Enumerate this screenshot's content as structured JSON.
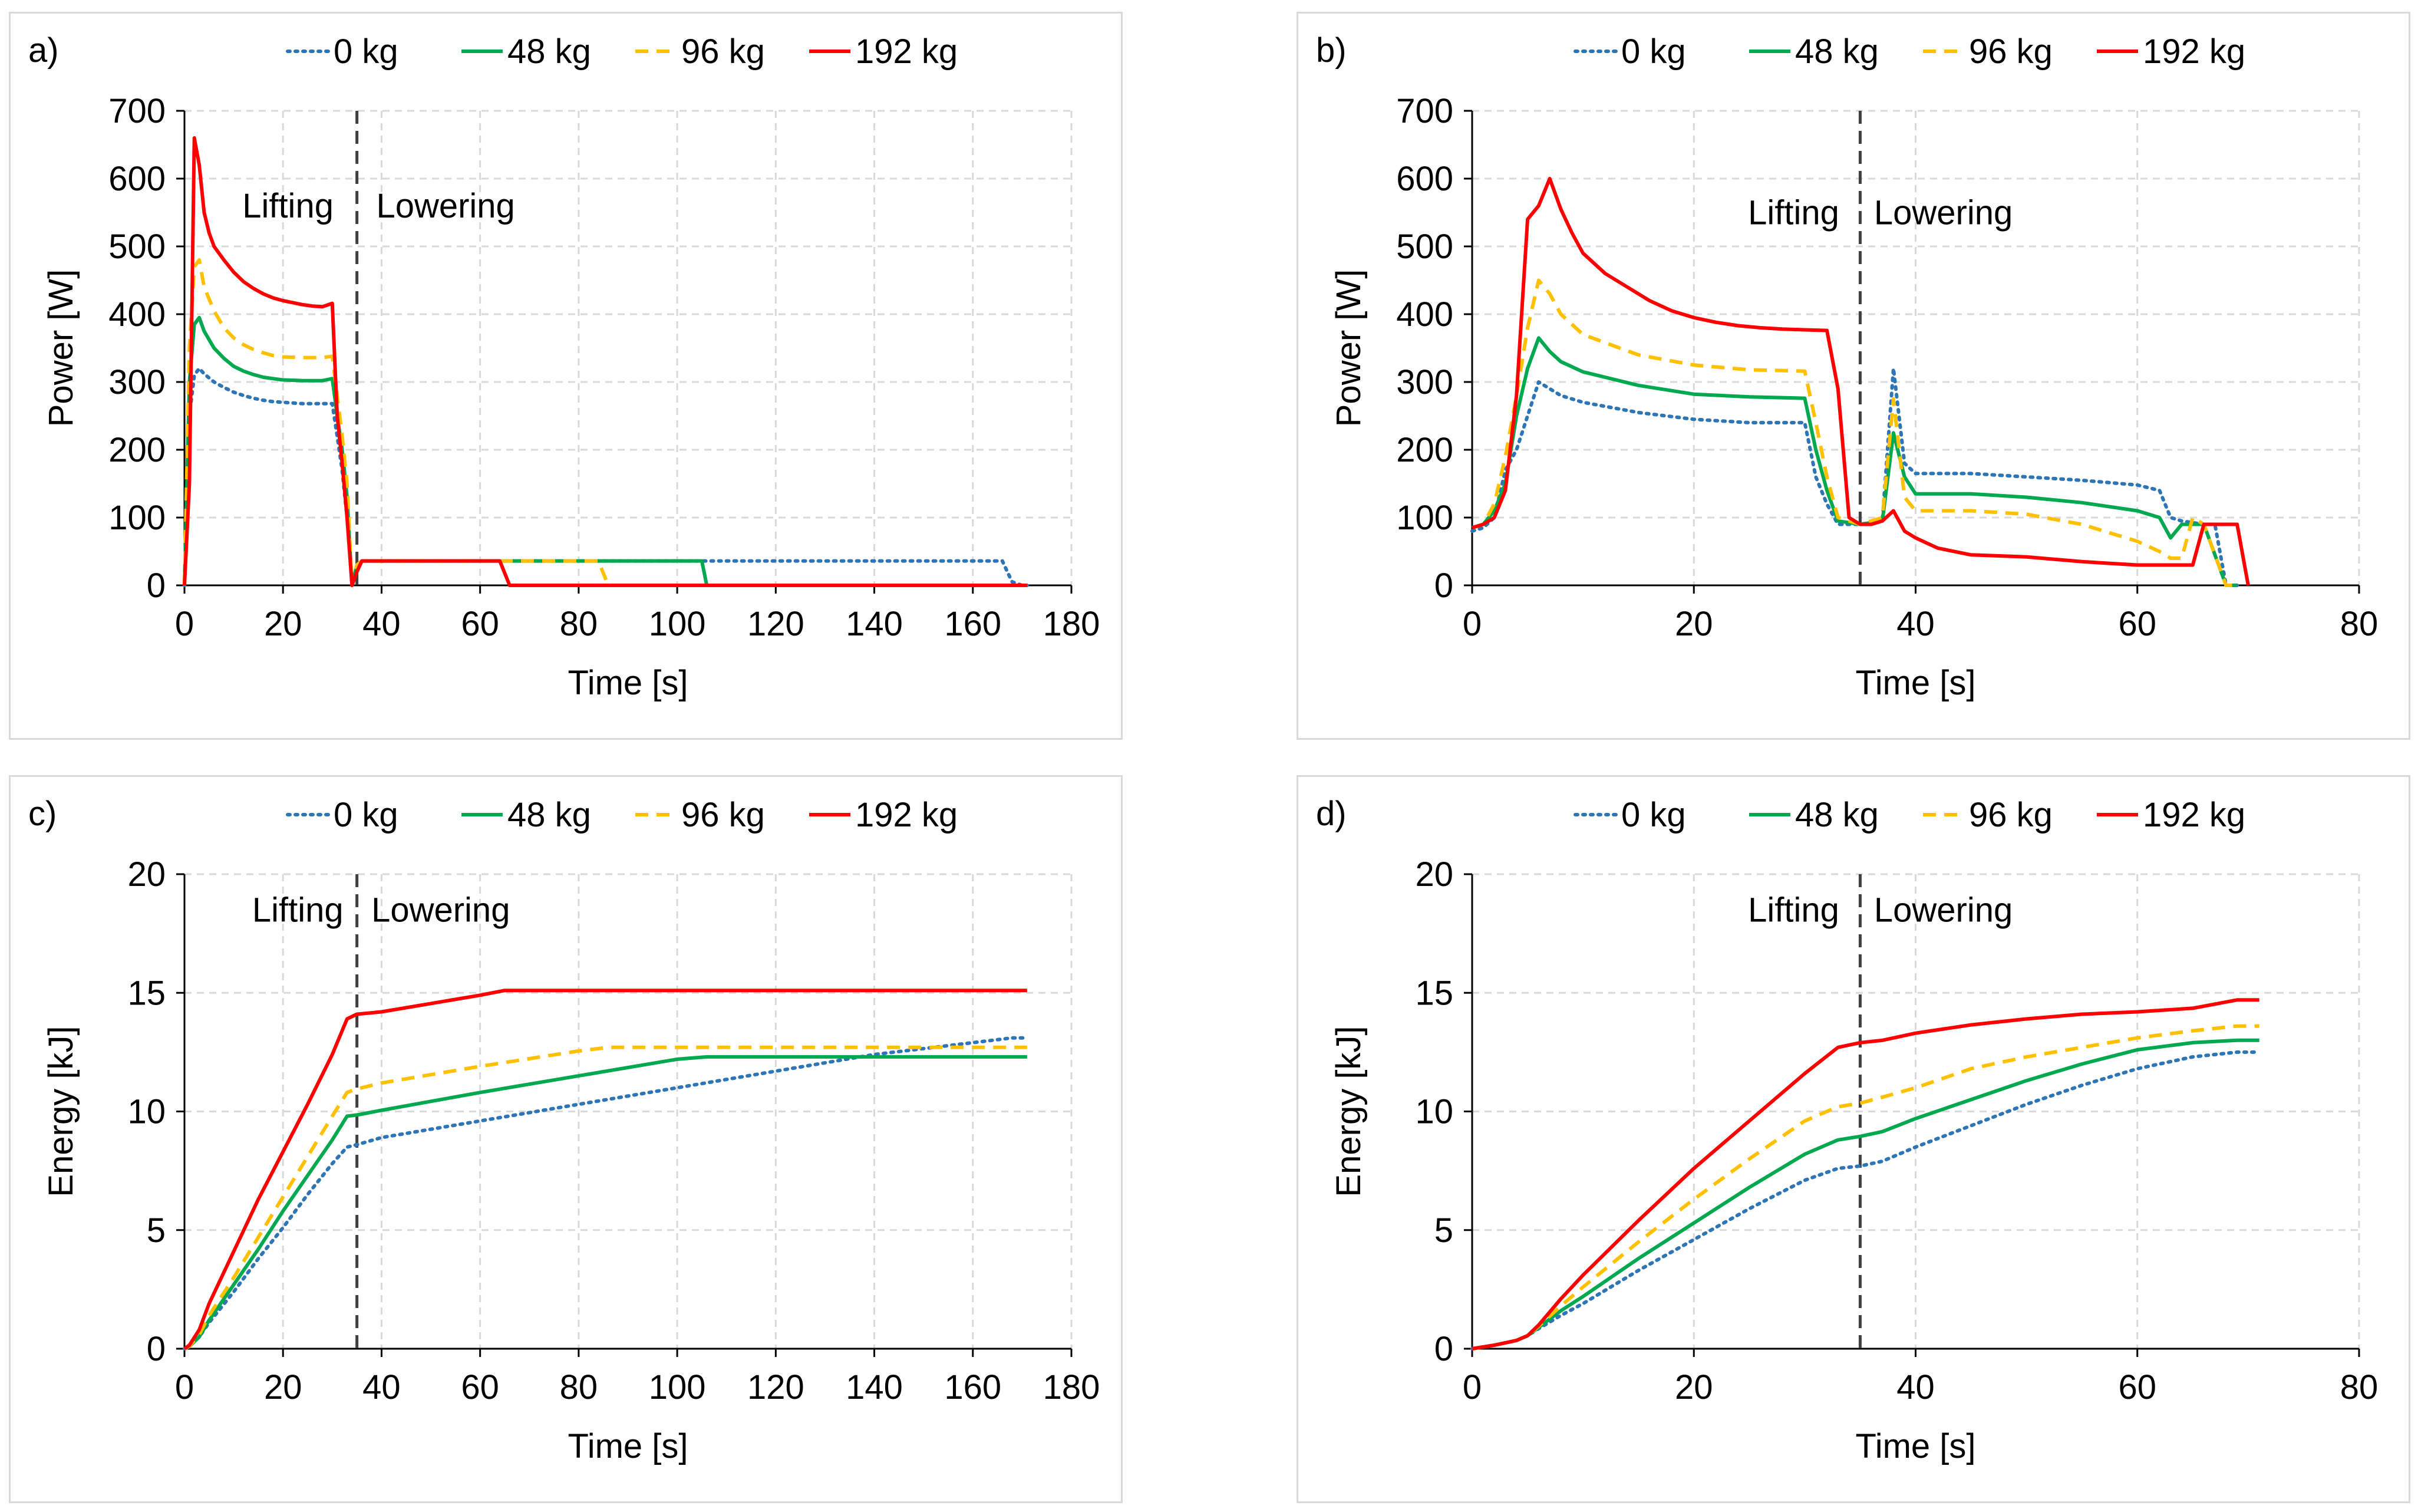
{
  "chart_data": [
    {
      "id": "a",
      "panel_label": "a)",
      "type": "line",
      "xlabel": "Time [s]",
      "ylabel": "Power  [W]",
      "xlim": [
        0,
        180
      ],
      "ylim": [
        0,
        700
      ],
      "xticks": [
        0,
        20,
        40,
        60,
        80,
        100,
        120,
        140,
        160,
        180
      ],
      "yticks": [
        0,
        100,
        200,
        300,
        400,
        500,
        600,
        700
      ],
      "grid": true,
      "legend_position": "top",
      "divider_x": 35,
      "annotations": [
        {
          "text": "Lifting",
          "x": 21,
          "y": 560
        },
        {
          "text": "Lowering",
          "x": 53,
          "y": 560
        }
      ],
      "series": [
        {
          "name": "0 kg",
          "color": "#2e75b6",
          "style": "dotted",
          "x": [
            0,
            1,
            2,
            3,
            4,
            6,
            8,
            10,
            12,
            14,
            16,
            18,
            20,
            24,
            28,
            30,
            31,
            32,
            33,
            34,
            35,
            36,
            40,
            60,
            80,
            100,
            120,
            140,
            160,
            166,
            167,
            168,
            170,
            171
          ],
          "y": [
            0,
            250,
            310,
            320,
            312,
            300,
            292,
            285,
            280,
            276,
            273,
            271,
            270,
            268,
            268,
            268,
            220,
            170,
            100,
            0,
            20,
            36,
            36,
            36,
            36,
            36,
            36,
            36,
            36,
            36,
            20,
            5,
            0,
            0
          ]
        },
        {
          "name": "48 kg",
          "color": "#00a84f",
          "style": "solid",
          "x": [
            0,
            1,
            2,
            3,
            4,
            6,
            8,
            10,
            12,
            14,
            16,
            18,
            20,
            24,
            28,
            30,
            31,
            32,
            33,
            34,
            35,
            36,
            40,
            60,
            80,
            100,
            105,
            106,
            110,
            171
          ],
          "y": [
            0,
            300,
            385,
            395,
            375,
            350,
            335,
            323,
            316,
            311,
            307,
            305,
            303,
            302,
            302,
            305,
            250,
            200,
            130,
            0,
            30,
            36,
            36,
            36,
            36,
            36,
            36,
            0,
            0,
            0
          ]
        },
        {
          "name": "96 kg",
          "color": "#ffc000",
          "style": "dashed",
          "x": [
            0,
            1,
            2,
            3,
            4,
            6,
            8,
            10,
            12,
            14,
            16,
            18,
            20,
            24,
            28,
            30,
            31,
            32,
            33,
            34,
            35,
            36,
            40,
            60,
            80,
            84,
            86,
            90,
            171
          ],
          "y": [
            0,
            350,
            470,
            480,
            440,
            405,
            380,
            365,
            355,
            348,
            343,
            339,
            337,
            336,
            336,
            338,
            280,
            220,
            150,
            0,
            30,
            36,
            36,
            36,
            36,
            36,
            0,
            0,
            0
          ]
        },
        {
          "name": "192 kg",
          "color": "#ff0000",
          "style": "solid",
          "x": [
            0,
            1,
            2,
            3,
            4,
            5,
            6,
            8,
            10,
            12,
            14,
            16,
            18,
            20,
            22,
            24,
            26,
            28,
            30,
            31,
            32,
            33,
            34,
            35,
            36,
            40,
            60,
            64,
            66,
            70,
            171
          ],
          "y": [
            0,
            150,
            660,
            620,
            550,
            520,
            500,
            480,
            462,
            448,
            438,
            430,
            424,
            420,
            417,
            414,
            412,
            411,
            416,
            250,
            180,
            100,
            0,
            20,
            36,
            36,
            36,
            36,
            0,
            0,
            0
          ]
        }
      ]
    },
    {
      "id": "b",
      "panel_label": "b)",
      "type": "line",
      "xlabel": "Time [s]",
      "ylabel": "Power  [W]",
      "xlim": [
        0,
        80
      ],
      "ylim": [
        0,
        700
      ],
      "xticks": [
        0,
        20,
        40,
        60,
        80
      ],
      "yticks": [
        0,
        100,
        200,
        300,
        400,
        500,
        600,
        700
      ],
      "grid": true,
      "legend_position": "top",
      "divider_x": 35,
      "annotations": [
        {
          "text": "Lifting",
          "x": 29,
          "y": 550
        },
        {
          "text": "Lowering",
          "x": 42.5,
          "y": 550
        }
      ],
      "series": [
        {
          "name": "0 kg",
          "color": "#2e75b6",
          "style": "dotted",
          "x": [
            0,
            1,
            2,
            3,
            4,
            5,
            6,
            7,
            8,
            10,
            15,
            20,
            25,
            30,
            31,
            32,
            33,
            35,
            37,
            38,
            39,
            40,
            45,
            50,
            55,
            60,
            62,
            63,
            64,
            66,
            67,
            68,
            69
          ],
          "y": [
            80,
            85,
            100,
            170,
            200,
            250,
            300,
            290,
            280,
            270,
            255,
            245,
            240,
            240,
            160,
            120,
            90,
            90,
            95,
            320,
            180,
            165,
            165,
            160,
            155,
            148,
            140,
            100,
            95,
            90,
            90,
            0,
            0
          ]
        },
        {
          "name": "48 kg",
          "color": "#00a84f",
          "style": "solid",
          "x": [
            0,
            1,
            2,
            3,
            4,
            5,
            6,
            7,
            8,
            10,
            15,
            20,
            25,
            30,
            31,
            32,
            33,
            35,
            37,
            38,
            39,
            40,
            45,
            50,
            55,
            60,
            62,
            63,
            64,
            66,
            68,
            69
          ],
          "y": [
            85,
            90,
            110,
            150,
            250,
            320,
            365,
            345,
            330,
            315,
            295,
            282,
            278,
            276,
            200,
            140,
            95,
            90,
            95,
            225,
            160,
            135,
            135,
            130,
            122,
            110,
            100,
            70,
            90,
            90,
            0,
            0
          ]
        },
        {
          "name": "96 kg",
          "color": "#ffc000",
          "style": "dashed",
          "x": [
            0,
            1,
            2,
            3,
            4,
            5,
            6,
            7,
            8,
            10,
            15,
            20,
            25,
            30,
            31,
            32,
            33,
            35,
            37,
            38,
            39,
            40,
            45,
            50,
            55,
            60,
            62,
            63,
            64,
            65,
            66,
            68,
            69
          ],
          "y": [
            85,
            90,
            120,
            190,
            280,
            380,
            450,
            430,
            400,
            370,
            340,
            325,
            318,
            316,
            240,
            160,
            100,
            90,
            100,
            275,
            130,
            110,
            110,
            105,
            90,
            65,
            50,
            40,
            40,
            100,
            90,
            0,
            0
          ]
        },
        {
          "name": "192 kg",
          "color": "#ff0000",
          "style": "solid",
          "x": [
            0,
            1,
            2,
            3,
            4,
            5,
            6,
            7,
            8,
            9,
            10,
            12,
            14,
            16,
            18,
            20,
            22,
            24,
            26,
            28,
            30,
            32,
            33,
            34,
            35,
            36,
            37,
            38,
            39,
            40,
            42,
            45,
            50,
            55,
            58,
            60,
            62,
            64,
            65,
            66,
            68,
            69,
            70
          ],
          "y": [
            85,
            90,
            100,
            140,
            280,
            540,
            560,
            600,
            555,
            520,
            490,
            460,
            440,
            420,
            405,
            395,
            388,
            383,
            380,
            378,
            377,
            376,
            290,
            100,
            90,
            90,
            95,
            110,
            80,
            70,
            55,
            45,
            42,
            35,
            32,
            30,
            30,
            30,
            30,
            90,
            90,
            90,
            0
          ]
        }
      ]
    },
    {
      "id": "c",
      "panel_label": "c)",
      "type": "line",
      "xlabel": "Time [s]",
      "ylabel": "Energy  [kJ]",
      "xlim": [
        0,
        180
      ],
      "ylim": [
        0,
        20
      ],
      "xticks": [
        0,
        20,
        40,
        60,
        80,
        100,
        120,
        140,
        160,
        180
      ],
      "yticks": [
        0,
        5,
        10,
        15,
        20
      ],
      "grid": true,
      "legend_position": "top",
      "divider_x": 35,
      "annotations": [
        {
          "text": "Lifting",
          "x": 23,
          "y": 18.5
        },
        {
          "text": "Lowering",
          "x": 52,
          "y": 18.5
        }
      ],
      "series": [
        {
          "name": "0 kg",
          "color": "#2e75b6",
          "style": "dotted",
          "x": [
            0,
            1,
            3,
            5,
            10,
            15,
            20,
            25,
            30,
            33,
            35,
            40,
            60,
            80,
            100,
            120,
            140,
            160,
            168,
            171
          ],
          "y": [
            0,
            0.1,
            0.5,
            1.1,
            2.4,
            3.8,
            5.1,
            6.5,
            7.8,
            8.5,
            8.6,
            8.9,
            9.6,
            10.3,
            11.0,
            11.7,
            12.4,
            12.9,
            13.1,
            13.1
          ]
        },
        {
          "name": "48 kg",
          "color": "#00a84f",
          "style": "solid",
          "x": [
            0,
            1,
            3,
            5,
            10,
            15,
            20,
            25,
            30,
            33,
            35,
            40,
            60,
            80,
            100,
            106,
            120,
            140,
            160,
            171
          ],
          "y": [
            0,
            0.1,
            0.5,
            1.2,
            2.7,
            4.2,
            5.8,
            7.3,
            8.8,
            9.8,
            9.85,
            10.05,
            10.8,
            11.5,
            12.2,
            12.3,
            12.3,
            12.3,
            12.3,
            12.3
          ]
        },
        {
          "name": "96 kg",
          "color": "#ffc000",
          "style": "dashed",
          "x": [
            0,
            1,
            3,
            5,
            10,
            15,
            20,
            25,
            30,
            33,
            35,
            40,
            60,
            80,
            86,
            100,
            120,
            140,
            160,
            171
          ],
          "y": [
            0,
            0.1,
            0.6,
            1.4,
            3.0,
            4.7,
            6.4,
            8.1,
            9.8,
            10.8,
            10.95,
            11.2,
            11.9,
            12.55,
            12.7,
            12.7,
            12.7,
            12.7,
            12.7,
            12.7
          ]
        },
        {
          "name": "192 kg",
          "color": "#ff0000",
          "style": "solid",
          "x": [
            0,
            1,
            3,
            5,
            10,
            15,
            20,
            25,
            30,
            33,
            35,
            40,
            50,
            60,
            65,
            80,
            100,
            120,
            140,
            160,
            171
          ],
          "y": [
            0,
            0.15,
            0.8,
            1.9,
            4.1,
            6.3,
            8.3,
            10.3,
            12.4,
            13.9,
            14.1,
            14.2,
            14.55,
            14.9,
            15.1,
            15.1,
            15.1,
            15.1,
            15.1,
            15.1,
            15.1
          ]
        }
      ]
    },
    {
      "id": "d",
      "panel_label": "d)",
      "type": "line",
      "xlabel": "Time [s]",
      "ylabel": "Energy  [kJ]",
      "xlim": [
        0,
        80
      ],
      "ylim": [
        0,
        20
      ],
      "xticks": [
        0,
        20,
        40,
        60,
        80
      ],
      "yticks": [
        0,
        5,
        10,
        15,
        20
      ],
      "grid": true,
      "legend_position": "top",
      "divider_x": 35,
      "annotations": [
        {
          "text": "Lifting",
          "x": 29,
          "y": 18.5
        },
        {
          "text": "Lowering",
          "x": 42.5,
          "y": 18.5
        }
      ],
      "series": [
        {
          "name": "0 kg",
          "color": "#2e75b6",
          "style": "dotted",
          "x": [
            0,
            2,
            4,
            5,
            6,
            8,
            10,
            15,
            20,
            25,
            30,
            33,
            35,
            37,
            40,
            45,
            50,
            55,
            60,
            65,
            69,
            71
          ],
          "y": [
            0,
            0.15,
            0.35,
            0.55,
            0.85,
            1.4,
            1.9,
            3.3,
            4.6,
            5.9,
            7.1,
            7.6,
            7.7,
            7.9,
            8.5,
            9.4,
            10.3,
            11.1,
            11.8,
            12.3,
            12.5,
            12.5
          ]
        },
        {
          "name": "48 kg",
          "color": "#00a84f",
          "style": "solid",
          "x": [
            0,
            2,
            4,
            5,
            6,
            8,
            10,
            15,
            20,
            25,
            30,
            33,
            35,
            37,
            40,
            45,
            50,
            55,
            60,
            65,
            69,
            71
          ],
          "y": [
            0,
            0.15,
            0.35,
            0.55,
            0.9,
            1.6,
            2.2,
            3.8,
            5.3,
            6.8,
            8.2,
            8.8,
            8.95,
            9.15,
            9.7,
            10.5,
            11.3,
            12.0,
            12.6,
            12.9,
            13.0,
            13.0
          ]
        },
        {
          "name": "96 kg",
          "color": "#ffc000",
          "style": "dashed",
          "x": [
            0,
            2,
            4,
            5,
            6,
            8,
            10,
            15,
            20,
            25,
            30,
            33,
            35,
            37,
            40,
            45,
            50,
            55,
            60,
            65,
            69,
            71
          ],
          "y": [
            0,
            0.15,
            0.35,
            0.55,
            0.95,
            1.8,
            2.6,
            4.5,
            6.3,
            8.0,
            9.6,
            10.2,
            10.35,
            10.6,
            11.0,
            11.8,
            12.3,
            12.7,
            13.1,
            13.4,
            13.6,
            13.6
          ]
        },
        {
          "name": "192 kg",
          "color": "#ff0000",
          "style": "solid",
          "x": [
            0,
            2,
            4,
            5,
            6,
            8,
            10,
            15,
            20,
            25,
            30,
            33,
            35,
            37,
            40,
            45,
            50,
            55,
            60,
            65,
            69,
            71
          ],
          "y": [
            0,
            0.15,
            0.35,
            0.55,
            1.0,
            2.1,
            3.1,
            5.4,
            7.6,
            9.6,
            11.6,
            12.7,
            12.9,
            13.0,
            13.3,
            13.65,
            13.9,
            14.1,
            14.2,
            14.35,
            14.7,
            14.7
          ]
        }
      ]
    }
  ]
}
